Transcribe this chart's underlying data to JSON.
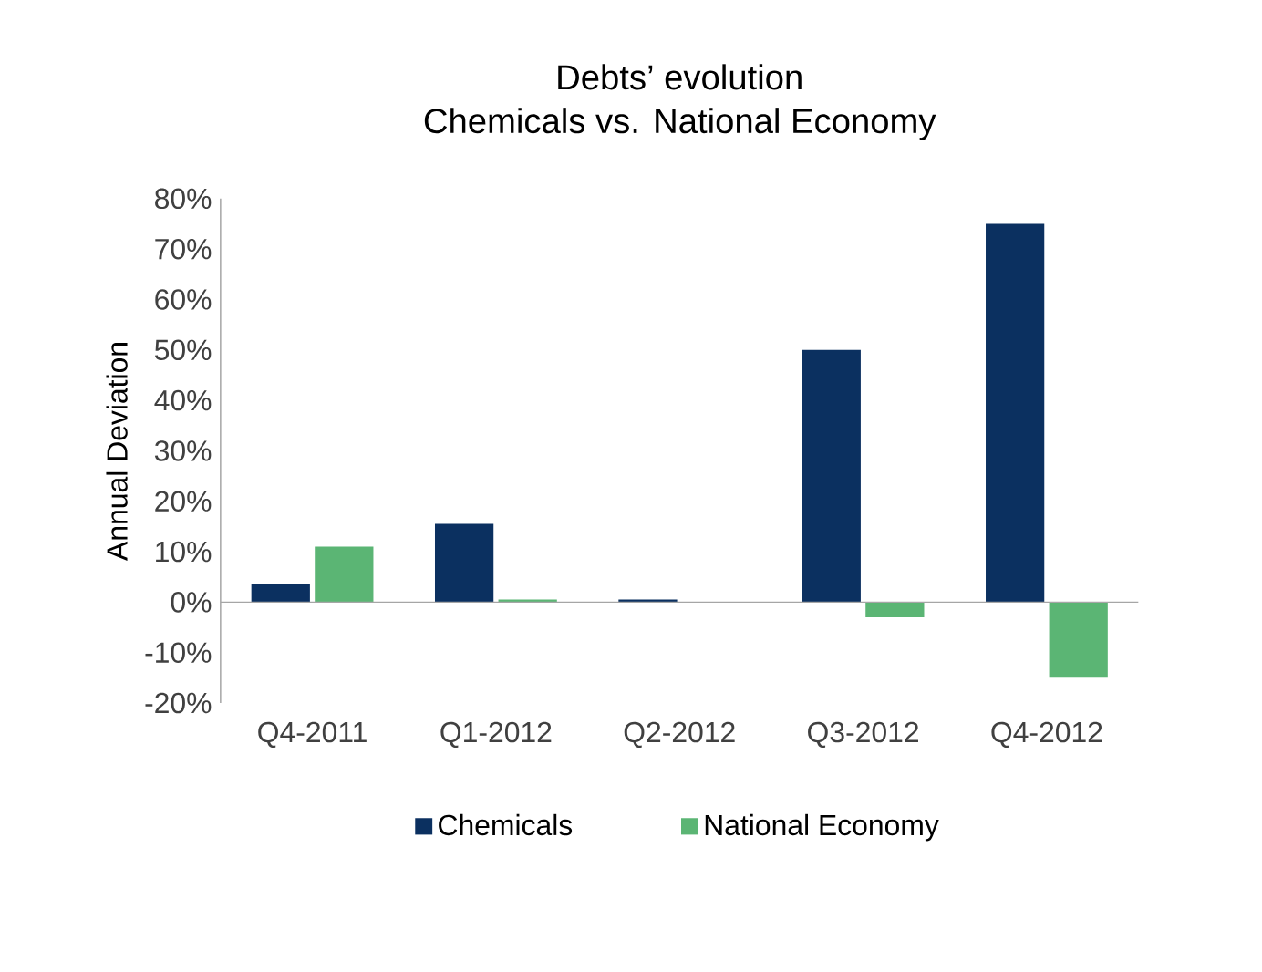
{
  "chart_data": {
    "type": "bar",
    "title": "Debts’ evolution\nChemicals vs. National Economy",
    "ylabel": "Annual Deviation",
    "categories": [
      "Q4-2011",
      "Q1-2012",
      "Q2-2012",
      "Q3-2012",
      "Q4-2012"
    ],
    "series": [
      {
        "name": "Chemicals",
        "color": "#0b3060",
        "values": [
          3.5,
          15.5,
          0.5,
          50,
          75
        ]
      },
      {
        "name": "National Economy",
        "color": "#5bb574",
        "values": [
          11,
          0.5,
          0,
          -3,
          -15
        ]
      }
    ],
    "ylim": [
      -20,
      80
    ],
    "yticks": [
      {
        "value": -20,
        "label": "-20%"
      },
      {
        "value": -10,
        "label": "-10%"
      },
      {
        "value": 0,
        "label": "0%"
      },
      {
        "value": 10,
        "label": "10%"
      },
      {
        "value": 20,
        "label": "20%"
      },
      {
        "value": 30,
        "label": "30%"
      },
      {
        "value": 40,
        "label": "40%"
      },
      {
        "value": 50,
        "label": "50%"
      },
      {
        "value": 60,
        "label": "60%"
      },
      {
        "value": 70,
        "label": "70%"
      },
      {
        "value": 80,
        "label": "80%"
      }
    ],
    "legend": "bottom"
  }
}
